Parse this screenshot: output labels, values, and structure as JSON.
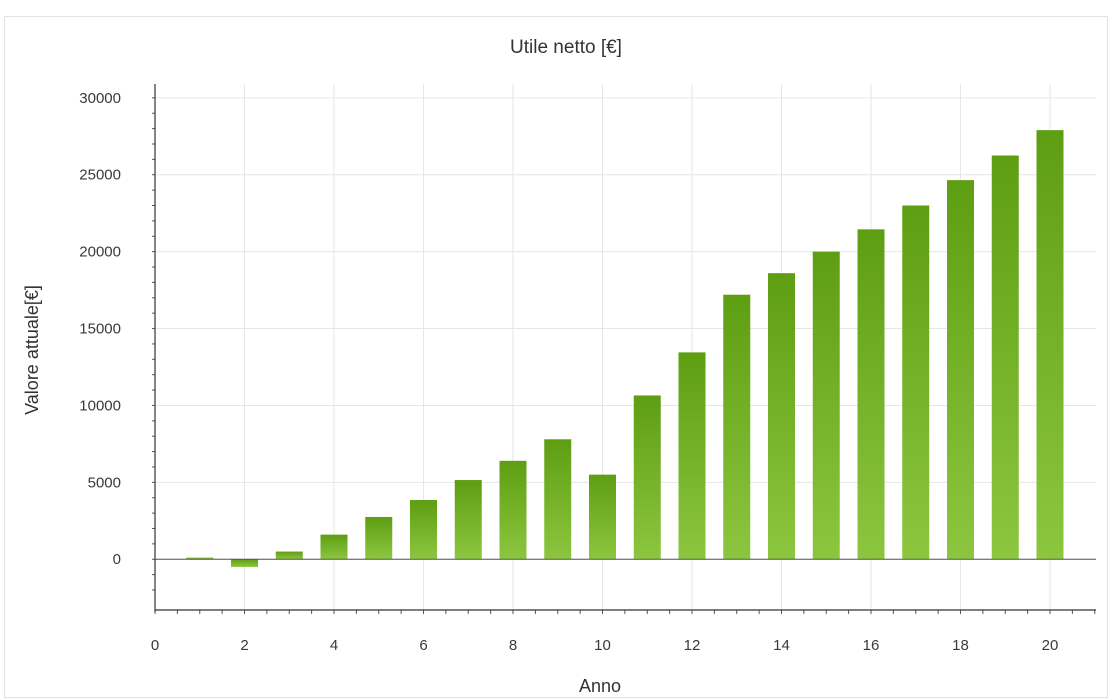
{
  "chart_data": {
    "type": "bar",
    "title": "Utile netto [€]",
    "xlabel": "Anno",
    "ylabel": "Valore attuale[€]",
    "x": [
      1,
      2,
      3,
      4,
      5,
      6,
      7,
      8,
      9,
      10,
      11,
      12,
      13,
      14,
      15,
      16,
      17,
      18,
      19,
      20
    ],
    "values": [
      100,
      -500,
      500,
      1600,
      2750,
      3850,
      5150,
      6400,
      7800,
      5500,
      10650,
      13450,
      17200,
      18600,
      20000,
      21450,
      23000,
      24650,
      26250,
      27900
    ],
    "xlim": [
      0,
      21.5
    ],
    "ylim": [
      -3300,
      30900
    ],
    "xticks": [
      "0",
      "2",
      "4",
      "6",
      "8",
      "10",
      "12",
      "14",
      "16",
      "18",
      "20"
    ],
    "yticks": [
      "0",
      "5000",
      "10000",
      "15000",
      "20000",
      "25000",
      "30000"
    ],
    "grid": true,
    "bar_color": "#6aaa1e"
  }
}
